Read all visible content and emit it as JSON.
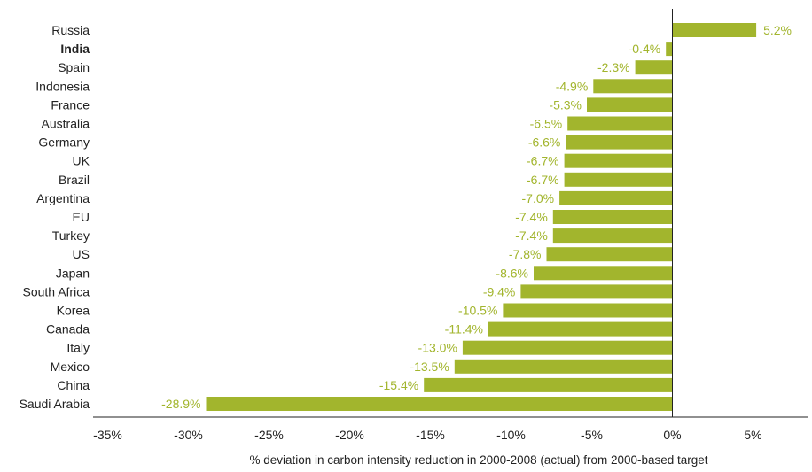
{
  "chart_data": {
    "type": "bar",
    "orientation": "horizontal",
    "categories": [
      "Russia",
      "India",
      "Spain",
      "Indonesia",
      "France",
      "Australia",
      "Germany",
      "UK",
      "Brazil",
      "Argentina",
      "EU",
      "Turkey",
      "US",
      "Japan",
      "South Africa",
      "Korea",
      "Canada",
      "Italy",
      "Mexico",
      "China",
      "Saudi Arabia"
    ],
    "values": [
      5.2,
      -0.4,
      -2.3,
      -4.9,
      -5.3,
      -6.5,
      -6.6,
      -6.7,
      -6.7,
      -7.0,
      -7.4,
      -7.4,
      -7.8,
      -8.6,
      -9.4,
      -10.5,
      -11.4,
      -13.0,
      -13.5,
      -15.4,
      -28.9
    ],
    "value_labels": [
      "5.2%",
      "-0.4%",
      "-2.3%",
      "-4.9%",
      "-5.3%",
      "-6.5%",
      "-6.6%",
      "-6.7%",
      "-6.7%",
      "-7.0%",
      "-7.4%",
      "-7.4%",
      "-7.8%",
      "-8.6%",
      "-9.4%",
      "-10.5%",
      "-11.4%",
      "-13.0%",
      "-13.5%",
      "-15.4%",
      "-28.9%"
    ],
    "highlighted_category": "India",
    "xlim": [
      -35,
      8
    ],
    "xticks": [
      -35,
      -30,
      -25,
      -20,
      -15,
      -10,
      -5,
      0,
      5
    ],
    "xtick_labels": [
      "-35%",
      "-30%",
      "-25%",
      "-20%",
      "-15%",
      "-10%",
      "-5%",
      "0%",
      "5%"
    ],
    "xlabel": "% deviation in carbon intensity reduction in 2000-2008 (actual) from 2000-based target",
    "ylabel": "",
    "title": "",
    "grid": false,
    "colors": {
      "bar": "#a2b52d",
      "label": "#a2b52d",
      "axis": "#222222"
    }
  }
}
